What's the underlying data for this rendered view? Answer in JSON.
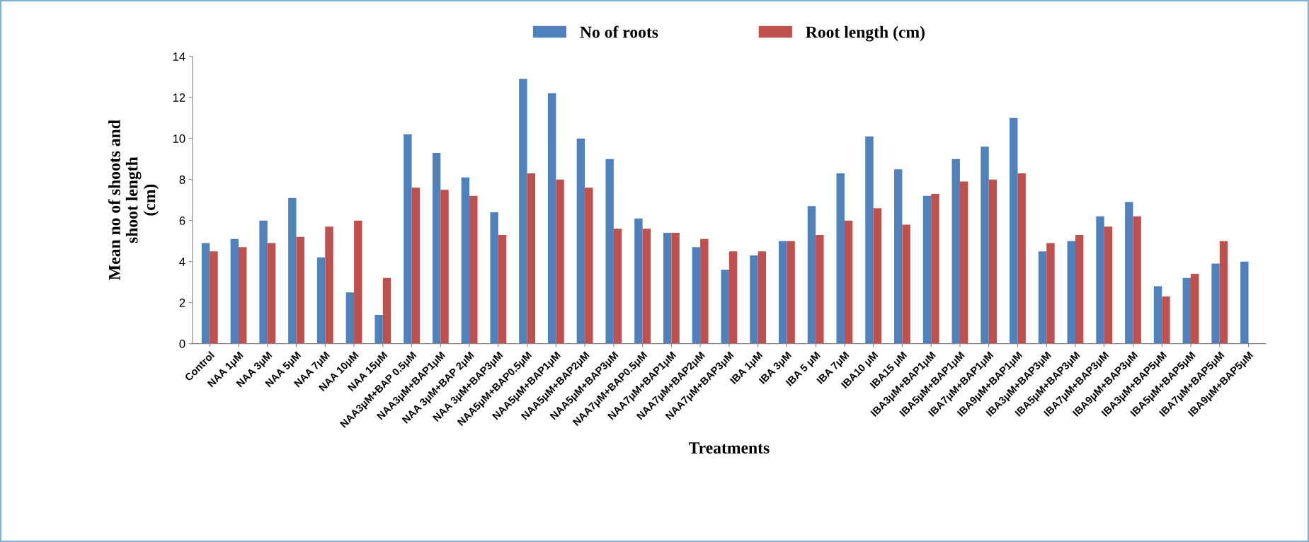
{
  "chart_data": {
    "type": "bar",
    "xlabel": "Treatments",
    "ylabel": "Mean no of shoots and\nshoot length\n(cm)",
    "categories": [
      "Control",
      "NAA 1μM",
      "NAA 3μM",
      "NAA 5μM",
      "NAA 7μM",
      "NAA 10μM",
      "NAA 15μM",
      "NAA3μM+BAP 0.5μM",
      "NAA3μM+BAP1μM",
      "NAA 3μM+BAP 2μM",
      "NAA 3μM+BAP3μM",
      "NAA5μM+BAP0.5μM",
      "NAA5μM+BAP1μM",
      "NAA5μM+BAP2μM",
      "NAA5μM+BAP3μM",
      "NAA7μM+BAP0.5μM",
      "NAA7μM+BAP1μM",
      "NAA7μM+BAP2μM",
      "NAA7μM+BAP3μM",
      "IBA 1μM",
      "IBA 3μM",
      "IBA 5 μM",
      "IBA 7μM",
      "IBA10 μM",
      "IBA15 μM",
      "IBA3μM+BAP1μM",
      "IBA5μM+BAP1μM",
      "IBA7μM+BAP1μM",
      "IBA9μM+BAP1μM",
      "IBA3μM+BAP3μM",
      "IBA5μM+BAP3μM",
      "IBA7μM+BAP3μM",
      "IBA9μM+BAP3μM",
      "IBA3μM+BAP5μM",
      "IBA5μM+BAP5μM",
      "IBA7μM+BAP5μM",
      "IBA9μM+BAP5μM"
    ],
    "series": [
      {
        "name": "No of roots",
        "color": "#4f81bd",
        "values": [
          4.9,
          5.1,
          6.0,
          7.1,
          4.2,
          2.5,
          1.4,
          10.2,
          9.3,
          8.1,
          6.4,
          12.9,
          12.2,
          10.0,
          9.0,
          6.1,
          5.4,
          4.7,
          3.6,
          4.3,
          5.0,
          6.7,
          8.3,
          10.1,
          8.5,
          7.2,
          9.0,
          9.6,
          11.0,
          4.5,
          5.0,
          6.2,
          6.9,
          2.8,
          3.2,
          3.9,
          4.0
        ]
      },
      {
        "name": "Root length (cm)",
        "color": "#c0504d",
        "values": [
          4.5,
          4.7,
          4.9,
          5.2,
          5.7,
          6.0,
          3.2,
          7.6,
          7.5,
          7.2,
          5.3,
          8.3,
          8.0,
          7.6,
          5.6,
          5.6,
          5.4,
          5.1,
          4.5,
          4.5,
          5.0,
          5.3,
          6.0,
          6.6,
          5.8,
          7.3,
          7.9,
          8.0,
          8.3,
          4.9,
          5.3,
          5.7,
          6.2,
          2.3,
          3.4,
          5.0,
          null
        ]
      }
    ],
    "ylim": [
      0,
      14
    ],
    "yticks": [
      0,
      2,
      4,
      6,
      8,
      10,
      12,
      14
    ],
    "grid": false,
    "legend": "top"
  }
}
